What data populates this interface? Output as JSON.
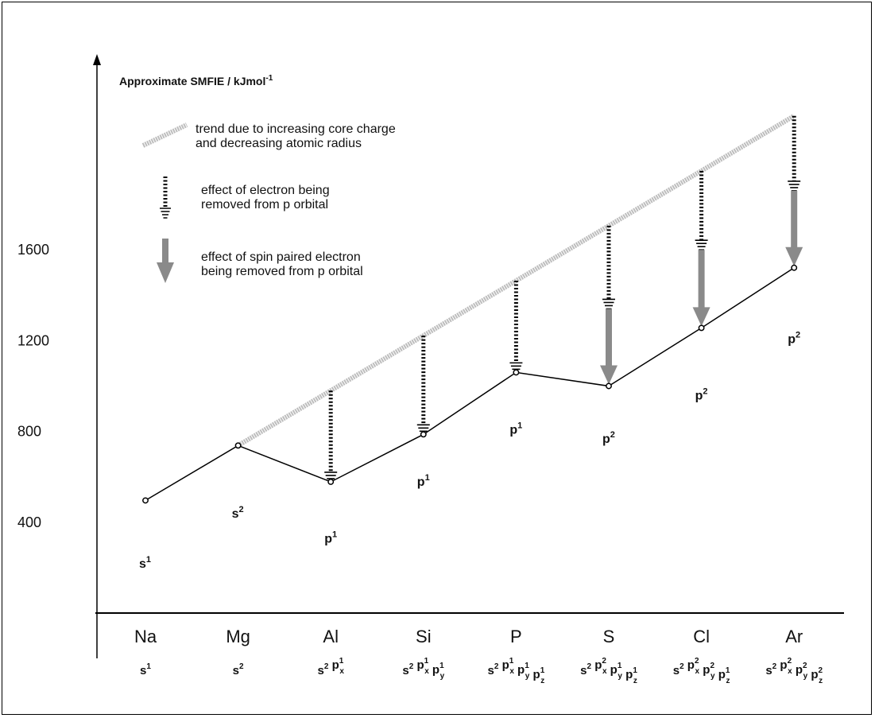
{
  "chart_data": {
    "type": "line",
    "title": "Approximate SMFIE / kJmol",
    "title_superscript": "-1",
    "ylim": [
      0,
      2000
    ],
    "yticks": [
      400,
      800,
      1200,
      1600
    ],
    "categories": [
      "Na",
      "Mg",
      "Al",
      "Si",
      "P",
      "S",
      "Cl",
      "Ar"
    ],
    "configurations": [
      [
        [
          "s",
          "1",
          "",
          ""
        ]
      ],
      [
        [
          "s",
          "2",
          "",
          ""
        ]
      ],
      [
        [
          "s",
          "2",
          "",
          ""
        ],
        [
          "p",
          "1",
          "x",
          ""
        ]
      ],
      [
        [
          "s",
          "2",
          "",
          ""
        ],
        [
          "p",
          "1",
          "x",
          ""
        ],
        [
          "p",
          "1",
          "y",
          ""
        ]
      ],
      [
        [
          "s",
          "2",
          "",
          ""
        ],
        [
          "p",
          "1",
          "x",
          ""
        ],
        [
          "p",
          "1",
          "y",
          ""
        ],
        [
          "p",
          "1",
          "z",
          ""
        ]
      ],
      [
        [
          "s",
          "2",
          "",
          ""
        ],
        [
          "p",
          "2",
          "x",
          ""
        ],
        [
          "p",
          "1",
          "y",
          ""
        ],
        [
          "p",
          "1",
          "z",
          ""
        ]
      ],
      [
        [
          "s",
          "2",
          "",
          ""
        ],
        [
          "p",
          "2",
          "x",
          ""
        ],
        [
          "p",
          "2",
          "y",
          ""
        ],
        [
          "p",
          "1",
          "z",
          ""
        ]
      ],
      [
        [
          "s",
          "2",
          "",
          ""
        ],
        [
          "p",
          "2",
          "x",
          ""
        ],
        [
          "p",
          "2",
          "y",
          ""
        ],
        [
          "p",
          "2",
          "z",
          ""
        ]
      ]
    ],
    "series": [
      {
        "values": [
          496,
          738,
          578,
          787,
          1060,
          1000,
          1256,
          1521
        ]
      },
      {
        "values": [
          null,
          738,
          980,
          1222,
          1464,
          1706,
          1948,
          2190
        ]
      }
    ],
    "point_labels": [
      {
        "base": "s",
        "sup": "1",
        "value": 200
      },
      {
        "base": "s",
        "sup": "2",
        "value": 420
      },
      {
        "base": "p",
        "sup": "1",
        "value": 310
      },
      {
        "base": "p",
        "sup": "1",
        "value": 560
      },
      {
        "base": "p",
        "sup": "1",
        "value": 790
      },
      {
        "base": "p",
        "sup": "2",
        "value": 750
      },
      {
        "base": "p",
        "sup": "2",
        "value": 940
      },
      {
        "base": "p",
        "sup": "2",
        "value": 1190
      }
    ],
    "effects": [
      {
        "category": "Al",
        "from": 980,
        "p_removed_to": 578,
        "spin_pair_to": null
      },
      {
        "category": "Si",
        "from": 1222,
        "p_removed_to": 787,
        "spin_pair_to": null
      },
      {
        "category": "P",
        "from": 1464,
        "p_removed_to": 1060,
        "spin_pair_to": null
      },
      {
        "category": "S",
        "from": 1706,
        "p_removed_to": 1340,
        "spin_pair_to": 1000
      },
      {
        "category": "Cl",
        "from": 1948,
        "p_removed_to": 1600,
        "spin_pair_to": 1256
      },
      {
        "category": "Ar",
        "from": 2190,
        "p_removed_to": 1860,
        "spin_pair_to": 1521
      }
    ],
    "legend": {
      "trend": [
        "trend due to increasing core charge",
        "and decreasing atomic radius"
      ],
      "p_orbital": [
        "effect of electron being",
        "removed from p orbital"
      ],
      "spin_paired": [
        "effect of spin paired electron",
        "being removed from p orbital"
      ]
    },
    "colors": {
      "line": "#000000",
      "trend": "#bdbdbd",
      "spin_arrow": "#8a8a8a"
    }
  }
}
